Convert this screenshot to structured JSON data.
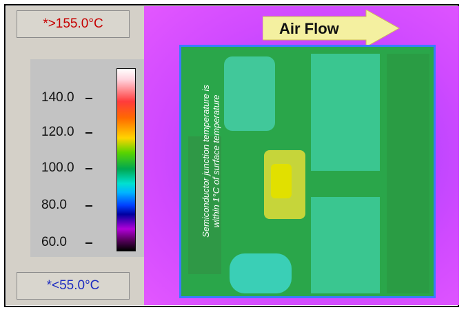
{
  "thermal_window": {
    "max_label": "*>155.0°C",
    "min_label": "*<55.0°C"
  },
  "scale": {
    "ticks": [
      "140.0",
      "120.0",
      "100.0",
      "80.0",
      "60.0"
    ],
    "colors": {
      "hot": "#ff0000",
      "warm": "#ffd400",
      "mid": "#00a850",
      "cool": "#00e0d0",
      "cold": "#0000a0"
    }
  },
  "annotation": {
    "line1": "Semiconductor junction temperature is",
    "line2": "within 1°C of surface temperature"
  },
  "airflow": {
    "label": "Air Flow"
  },
  "colors": {
    "panel_bg": "#d4d0c8",
    "board": "#2aa64a",
    "background_heat": "#c84aff"
  }
}
